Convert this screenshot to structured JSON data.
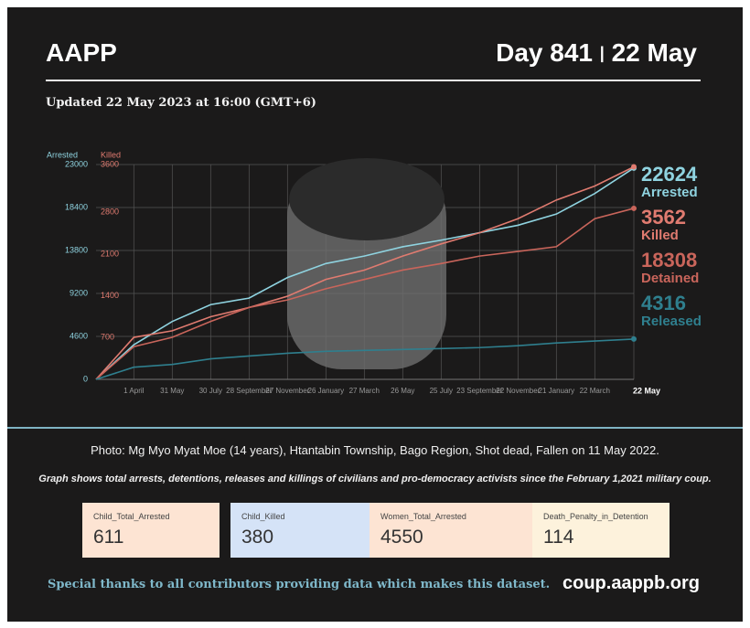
{
  "header": {
    "title": "AAPP",
    "day": "Day 841",
    "date": "22 May",
    "updated": "Updated 22 May 2023 at 16:00 (GMT+6)"
  },
  "chart_data": {
    "type": "line",
    "ylabel": "Arrested",
    "y2label": "Killed",
    "x": [
      0,
      59,
      119,
      179,
      239,
      299,
      359,
      419,
      479,
      539,
      599,
      659,
      719,
      779,
      840
    ],
    "xlim": [
      0,
      840
    ],
    "xticks": [
      {
        "value": 59,
        "label": "1 April"
      },
      {
        "value": 119,
        "label": "31 May"
      },
      {
        "value": 179,
        "label": "30 July"
      },
      {
        "value": 239,
        "label": "28 September"
      },
      {
        "value": 299,
        "label": "27 November"
      },
      {
        "value": 359,
        "label": "26 January"
      },
      {
        "value": 419,
        "label": "27 March"
      },
      {
        "value": 479,
        "label": "26 May"
      },
      {
        "value": 539,
        "label": "25 July"
      },
      {
        "value": 599,
        "label": "23 September"
      },
      {
        "value": 659,
        "label": "22 November"
      },
      {
        "value": 719,
        "label": "21 January"
      },
      {
        "value": 779,
        "label": "22 March"
      },
      {
        "value": 840,
        "label": "22 May"
      }
    ],
    "ylim": [
      0,
      23000
    ],
    "yticks": [
      0,
      4600,
      9200,
      13800,
      18400,
      23000
    ],
    "y2lim": [
      0,
      3600
    ],
    "y2ticks": [
      700,
      1400,
      2100,
      2800,
      3600
    ],
    "grid": true,
    "series": [
      {
        "name": "Arrested",
        "color": "#8fd3e0",
        "values": [
          0,
          3700,
          6200,
          8000,
          8700,
          10900,
          12400,
          13200,
          14200,
          14900,
          15700,
          16500,
          17700,
          19900,
          22624
        ]
      },
      {
        "name": "Killed",
        "color": "#e07b70",
        "axis": "y2",
        "values": [
          0,
          704,
          814,
          1049,
          1205,
          1393,
          1675,
          1831,
          2066,
          2270,
          2457,
          2692,
          3005,
          3240,
          3562
        ]
      },
      {
        "name": "Detained",
        "color": "#c9655b",
        "values": [
          0,
          3500,
          4500,
          6200,
          7700,
          8500,
          9700,
          10700,
          11700,
          12400,
          13200,
          13700,
          14200,
          17200,
          18308
        ]
      },
      {
        "name": "Released",
        "color": "#2f7f8e",
        "values": [
          0,
          1300,
          1600,
          2200,
          2500,
          2800,
          3000,
          3100,
          3200,
          3300,
          3400,
          3600,
          3900,
          4100,
          4316
        ]
      }
    ]
  },
  "caption": "Photo: Mg Myo Myat Moe (14 years), Htantabin Township, Bago Region, Shot dead, Fallen on 11 May 2022.",
  "description": "Graph shows total arrests, detentions, releases and killings of civilians and pro-democracy activists since the February 1,2021 military coup.",
  "cards": [
    {
      "label": "Child_Total_Arrested",
      "value": 611
    },
    {
      "label": "Child_Killed",
      "value": 380
    },
    {
      "label": "Women_Total_Arrested",
      "value": 4550
    },
    {
      "label": "Death_Penalty_in_Detention",
      "value": 114
    }
  ],
  "footer": {
    "thanks": "Special thanks to all contributors providing data which makes this dataset.",
    "url": "coup.aappb.org"
  }
}
